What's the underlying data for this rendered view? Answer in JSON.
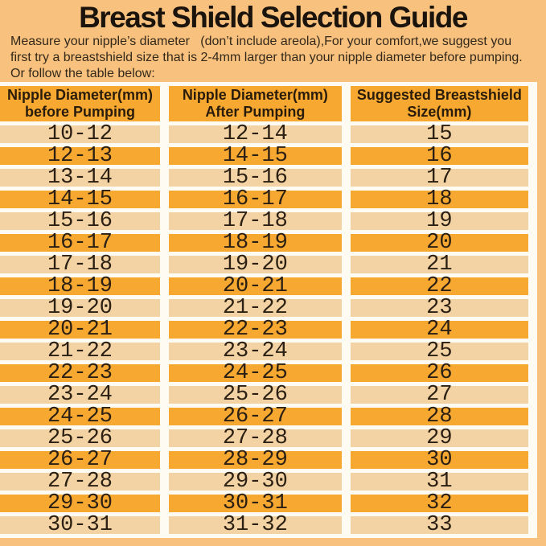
{
  "colors": {
    "page_background": "#F8C17E",
    "header_fill": "#F7A830",
    "row_dark_fill": "#F7A830",
    "row_light_fill": "#F3D3A4",
    "grid_line": "#FEFBF2",
    "text": "#2B2013"
  },
  "header": {
    "title": "Breast Shield Selection Guide",
    "intro_lines": [
      "Measure your nipple’s diameter   (don’t include areola),For your comfort,we suggest you",
      "first try a breastshield size that is 2-4mm larger than your nipple diameter before pumping.",
      "Or follow the table below:"
    ]
  },
  "table": {
    "columns": [
      {
        "line1": "Nipple Diameter(mm)",
        "line2": "before Pumping"
      },
      {
        "line1": "Nipple Diameter(mm)",
        "line2": "After Pumping"
      },
      {
        "line1": "Suggested Breastshield",
        "line2": "Size(mm)"
      }
    ],
    "rows": [
      [
        "10-12",
        "12-14",
        "15"
      ],
      [
        "12-13",
        "14-15",
        "16"
      ],
      [
        "13-14",
        "15-16",
        "17"
      ],
      [
        "14-15",
        "16-17",
        "18"
      ],
      [
        "15-16",
        "17-18",
        "19"
      ],
      [
        "16-17",
        "18-19",
        "20"
      ],
      [
        "17-18",
        "19-20",
        "21"
      ],
      [
        "18-19",
        "20-21",
        "22"
      ],
      [
        "19-20",
        "21-22",
        "23"
      ],
      [
        "20-21",
        "22-23",
        "24"
      ],
      [
        "21-22",
        "23-24",
        "25"
      ],
      [
        "22-23",
        "24-25",
        "26"
      ],
      [
        "23-24",
        "25-26",
        "27"
      ],
      [
        "24-25",
        "26-27",
        "28"
      ],
      [
        "25-26",
        "27-28",
        "29"
      ],
      [
        "26-27",
        "28-29",
        "30"
      ],
      [
        "27-28",
        "29-30",
        "31"
      ],
      [
        "29-30",
        "30-31",
        "32"
      ],
      [
        "30-31",
        "31-32",
        "33"
      ]
    ]
  }
}
